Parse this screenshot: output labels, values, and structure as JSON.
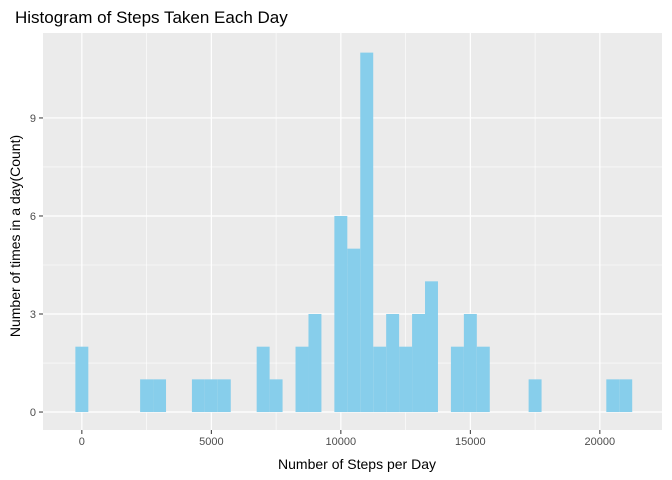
{
  "chart_data": {
    "type": "bar",
    "title": "Histogram of Steps Taken Each Day",
    "xlabel": "Number of Steps per Day",
    "ylabel": "Number of times in a day(Count)",
    "x_ticks": [
      0,
      5000,
      10000,
      15000,
      20000
    ],
    "y_ticks": [
      0,
      3,
      6,
      9
    ],
    "xlim": [
      -1500,
      22400
    ],
    "ylim": [
      -0.55,
      11.6
    ],
    "bin_width": 500,
    "grid": true,
    "colors": {
      "bar": "#87ceeb",
      "panel": "#ebebeb",
      "grid": "#ffffff"
    },
    "bins": [
      {
        "x": 0,
        "count": 2
      },
      {
        "x": 2500,
        "count": 1
      },
      {
        "x": 3000,
        "count": 1
      },
      {
        "x": 4500,
        "count": 1
      },
      {
        "x": 5000,
        "count": 1
      },
      {
        "x": 5500,
        "count": 1
      },
      {
        "x": 7000,
        "count": 2
      },
      {
        "x": 7500,
        "count": 1
      },
      {
        "x": 8500,
        "count": 2
      },
      {
        "x": 9000,
        "count": 3
      },
      {
        "x": 10000,
        "count": 6
      },
      {
        "x": 10500,
        "count": 5
      },
      {
        "x": 11000,
        "count": 11
      },
      {
        "x": 11500,
        "count": 2
      },
      {
        "x": 12000,
        "count": 3
      },
      {
        "x": 12500,
        "count": 2
      },
      {
        "x": 13000,
        "count": 3
      },
      {
        "x": 13500,
        "count": 4
      },
      {
        "x": 14500,
        "count": 2
      },
      {
        "x": 15000,
        "count": 3
      },
      {
        "x": 15500,
        "count": 2
      },
      {
        "x": 17500,
        "count": 1
      },
      {
        "x": 20500,
        "count": 1
      },
      {
        "x": 21000,
        "count": 1
      }
    ]
  }
}
